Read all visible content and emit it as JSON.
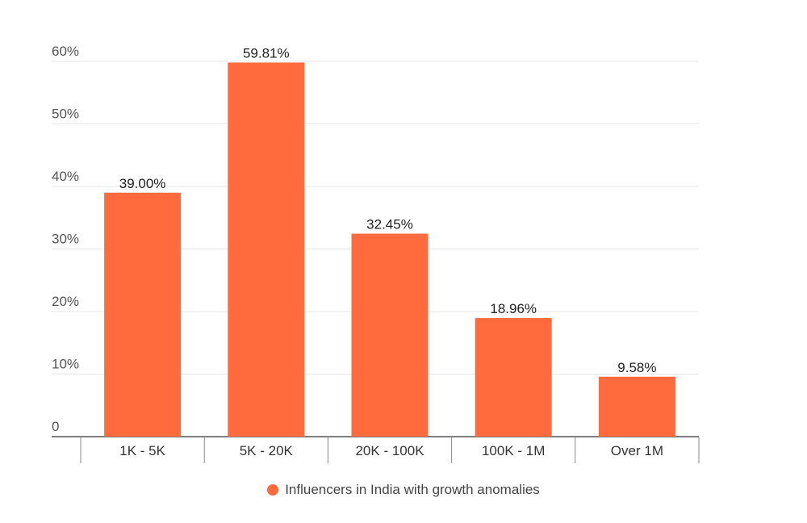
{
  "chart_data": {
    "type": "bar",
    "categories": [
      "1K - 5K",
      "5K - 20K",
      "20K - 100K",
      "100K - 1M",
      "Over 1M"
    ],
    "series": [
      {
        "name": "Influencers in India with growth anomalies",
        "values": [
          39.0,
          59.81,
          32.45,
          18.96,
          9.58
        ],
        "data_labels": [
          "39.00%",
          "59.81%",
          "32.45%",
          "18.96%",
          "9.58%"
        ]
      }
    ],
    "y_ticks": [
      0,
      10,
      20,
      30,
      40,
      50,
      60
    ],
    "y_tick_labels": [
      "0",
      "10%",
      "20%",
      "30%",
      "40%",
      "50%",
      "60%"
    ],
    "ylim": [
      0,
      60
    ],
    "grid": true,
    "legend_position": "bottom",
    "colors": {
      "bar": "#ff6b3d",
      "grid": "#e6e6e6",
      "axis": "#555555"
    }
  }
}
